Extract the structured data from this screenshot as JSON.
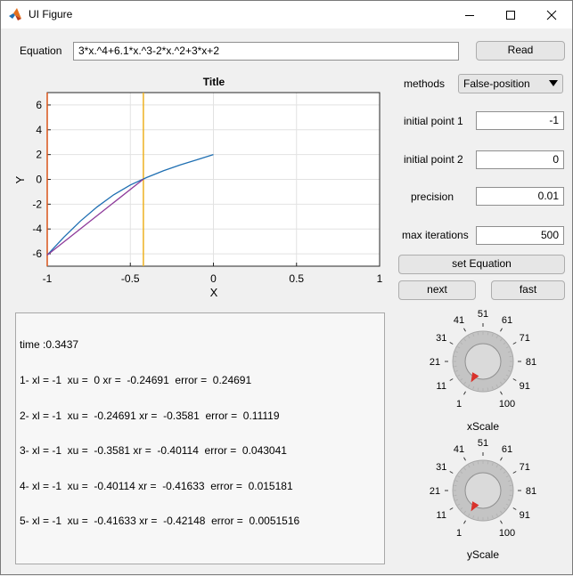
{
  "window": {
    "title": "UI Figure"
  },
  "equation": {
    "label": "Equation",
    "value": "3*x.^4+6.1*x.^3-2*x.^2+3*x+2",
    "read_label": "Read"
  },
  "plot": {
    "title": "Title",
    "xlabel": "X",
    "ylabel": "Y",
    "xlim": [
      -1,
      1
    ],
    "ylim": [
      -7,
      7
    ],
    "xticks": [
      "-1",
      "-0.5",
      "0",
      "0.5",
      "1"
    ],
    "yticks": [
      "6",
      "4",
      "2",
      "0",
      "-2",
      "-4",
      "-6"
    ],
    "grid": true,
    "colors": {
      "curve": "#1f6fb2",
      "secant": "#8e3b9a",
      "root_line": "#edb120",
      "left_line": "#d95319"
    }
  },
  "chart_data": {
    "type": "line",
    "title": "Title",
    "xlabel": "X",
    "ylabel": "Y",
    "xlim": [
      -1,
      1
    ],
    "ylim": [
      -7,
      7
    ],
    "series": [
      {
        "x": [
          -1,
          -0.9,
          -0.8,
          -0.7,
          -0.6,
          -0.5,
          -0.4,
          -0.3,
          -0.2,
          -0.1,
          0
        ],
        "values": [
          -6.1,
          -4.66,
          -3.36,
          -2.22,
          -1.24,
          -0.45,
          0.16,
          0.7,
          1.17,
          1.58,
          2.0
        ]
      },
      {
        "x": [
          -1,
          -0.42148
        ],
        "values": [
          -6.1,
          0.02
        ]
      }
    ],
    "vertical_lines": [
      -1,
      -0.42148
    ]
  },
  "controls": {
    "methods_label": "methods",
    "methods_value": "False-position",
    "initial_point_1_label": "initial point 1",
    "initial_point_1_value": "-1",
    "initial_point_2_label": "initial point 2",
    "initial_point_2_value": "0",
    "precision_label": "precision",
    "precision_value": "0.01",
    "max_iterations_label": "max iterations",
    "max_iterations_value": "500",
    "set_equation_label": "set Equation",
    "next_label": "next",
    "fast_label": "fast"
  },
  "log": {
    "lines": [
      "time :0.3437",
      "1- xl = -1  xu =  0 xr =  -0.24691  error =  0.24691",
      "2- xl = -1  xu =  -0.24691 xr =  -0.3581  error =  0.11119",
      "3- xl = -1  xu =  -0.3581 xr =  -0.40114  error =  0.043041",
      "4- xl = -1  xu =  -0.40114 xr =  -0.41633  error =  0.015181",
      "5- xl = -1  xu =  -0.41633 xr =  -0.42148  error =  0.0051516"
    ]
  },
  "knobs": {
    "ticks": [
      "1",
      "11",
      "21",
      "31",
      "41",
      "51",
      "61",
      "71",
      "81",
      "91",
      "100"
    ],
    "xscale": {
      "label": "xScale",
      "value": 1
    },
    "yscale": {
      "label": "yScale",
      "value": 1
    }
  }
}
